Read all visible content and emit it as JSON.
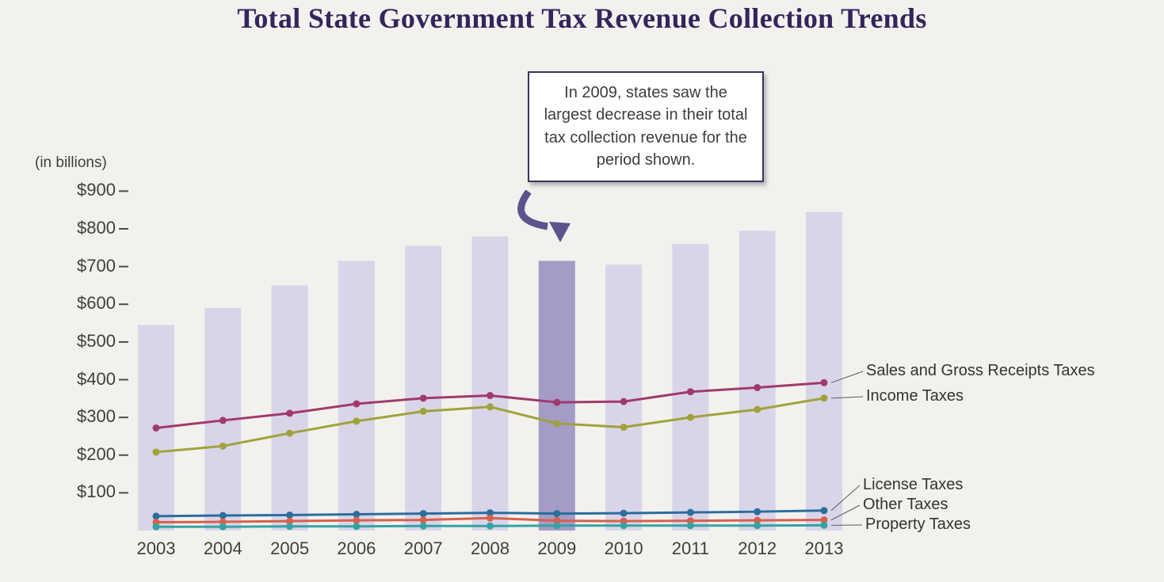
{
  "title": "Total State Government Tax Revenue Collection Trends",
  "y_axis_note": "(in billions)",
  "annotation": {
    "text": "In 2009, states saw the largest decrease in their total tax collection revenue for the period shown."
  },
  "colors": {
    "background": "#f2f1ee",
    "title_text": "#33265c",
    "axis_text": "#3f3f3f",
    "annotation_border": "#3b3163",
    "arrow": "#5c538c"
  },
  "chart_data": {
    "type": "bar",
    "subtype": "combo-bar-with-lines",
    "title": "Total State Government Tax Revenue Collection Trends",
    "ylabel": "(in billions)",
    "xlabel": "",
    "grid": false,
    "legend_position": "right-of-line-ends",
    "categories": [
      "2003",
      "2004",
      "2005",
      "2006",
      "2007",
      "2008",
      "2009",
      "2010",
      "2011",
      "2012",
      "2013"
    ],
    "bars": {
      "name": "Total state tax revenue",
      "values": [
        545,
        590,
        650,
        715,
        755,
        780,
        715,
        705,
        760,
        795,
        845
      ],
      "color": "#d9d5e8",
      "highlight_index": 6,
      "highlight_category": "2009",
      "highlight_color": "#a59bc7"
    },
    "series": [
      {
        "name": "Sales and Gross Receipts Taxes",
        "type": "line",
        "color": "#a13a6c",
        "values": [
          272,
          292,
          311,
          336,
          351,
          358,
          340,
          342,
          368,
          379,
          392
        ]
      },
      {
        "name": "Income Taxes",
        "type": "line",
        "color": "#a0a23b",
        "values": [
          208,
          224,
          258,
          290,
          316,
          328,
          284,
          274,
          300,
          321,
          351
        ]
      },
      {
        "name": "License Taxes",
        "type": "line",
        "color": "#2b6d9d",
        "values": [
          38,
          40,
          41,
          43,
          45,
          47,
          45,
          46,
          48,
          50,
          53
        ]
      },
      {
        "name": "Other Taxes",
        "type": "line",
        "color": "#d9604b",
        "values": [
          22,
          23,
          25,
          27,
          28,
          33,
          26,
          25,
          26,
          27,
          28
        ]
      },
      {
        "name": "Property Taxes",
        "type": "line",
        "color": "#35a3a3",
        "values": [
          10,
          10,
          11,
          11,
          12,
          12,
          13,
          13,
          13,
          13,
          14
        ]
      }
    ],
    "yticks": [
      100,
      200,
      300,
      400,
      500,
      600,
      700,
      800,
      900
    ],
    "ytick_prefix": "$",
    "ylim": [
      0,
      950
    ]
  }
}
